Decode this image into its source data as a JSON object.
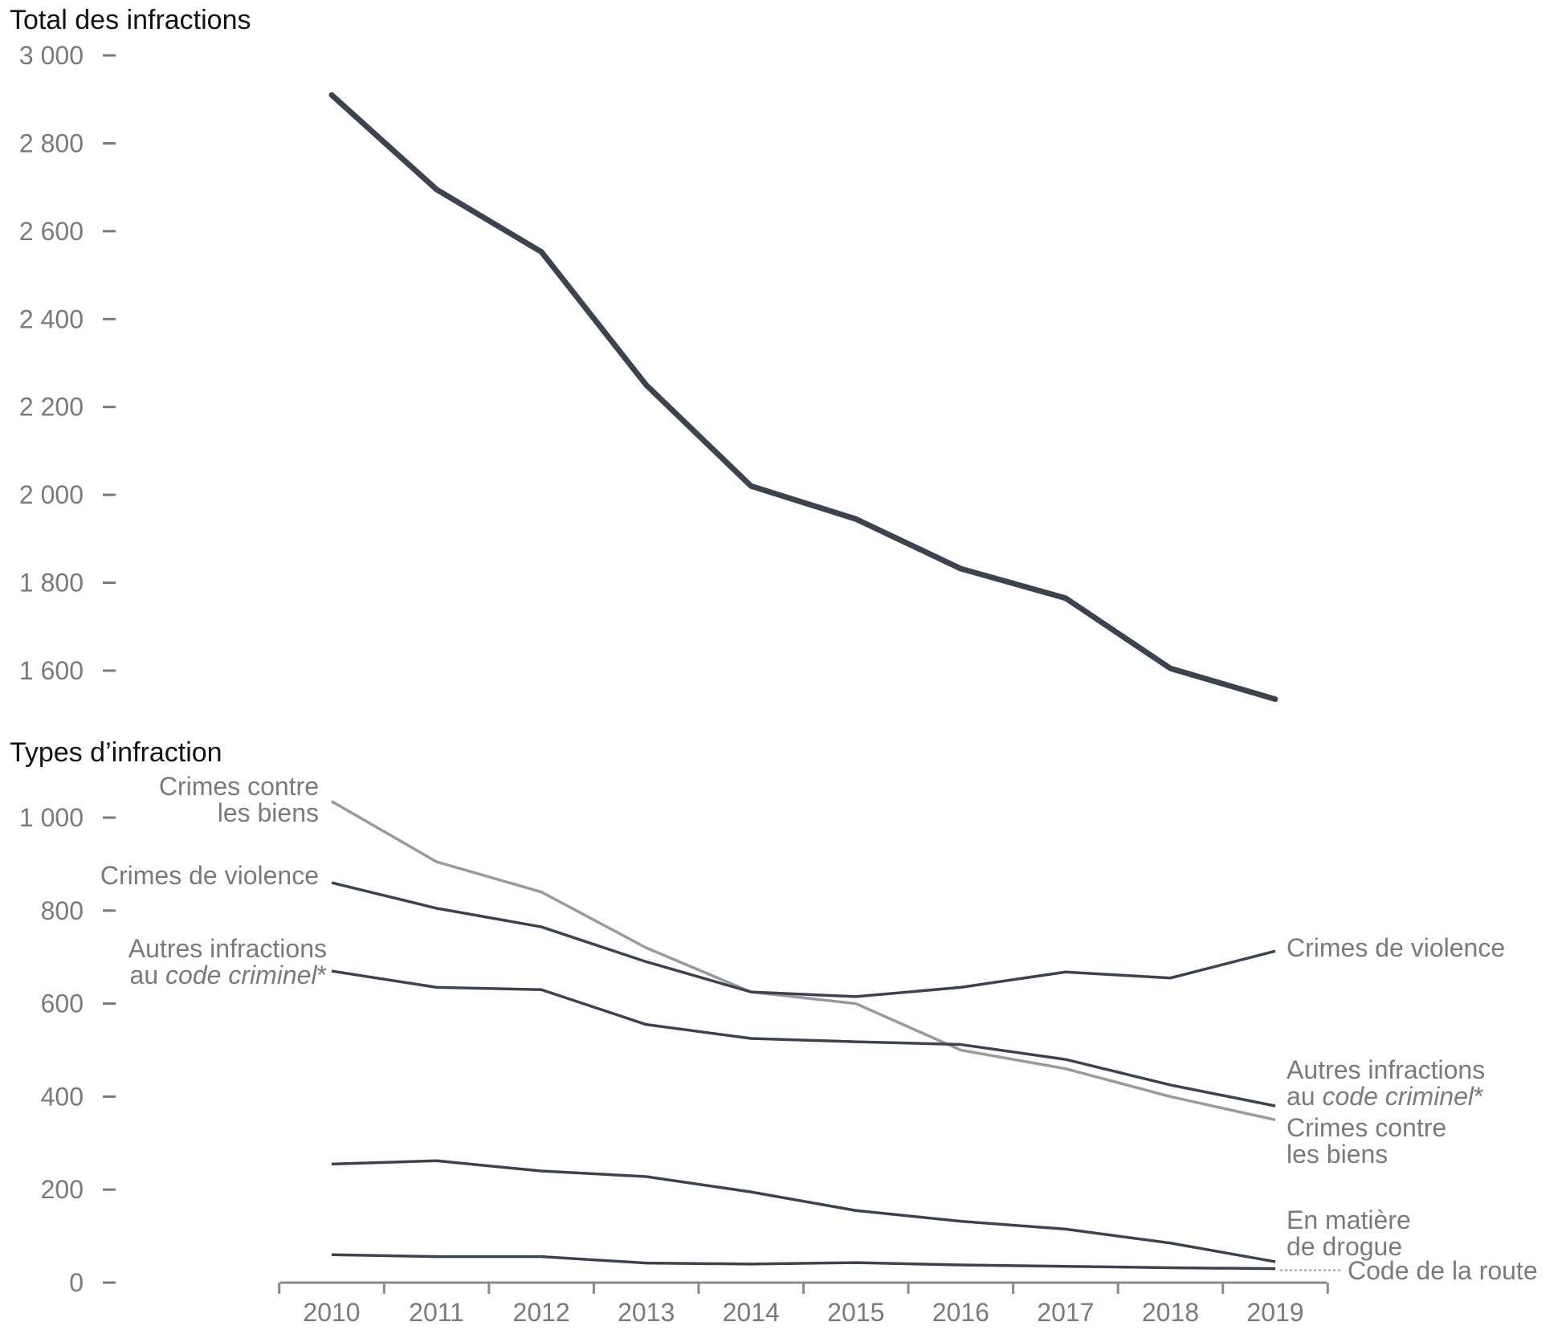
{
  "chart_data": [
    {
      "type": "line",
      "title": "Total des infractions",
      "x": [
        "2010",
        "2011",
        "2012",
        "2013",
        "2014",
        "2015",
        "2016",
        "2017",
        "2018",
        "2019"
      ],
      "ylim": [
        1600,
        3000
      ],
      "yticks": [
        {
          "value": 3000,
          "label": "3 000"
        },
        {
          "value": 2800,
          "label": "2 800"
        },
        {
          "value": 2600,
          "label": "2 600"
        },
        {
          "value": 2400,
          "label": "2 400"
        },
        {
          "value": 2200,
          "label": "2 200"
        },
        {
          "value": 2000,
          "label": "2 000"
        },
        {
          "value": 1800,
          "label": "1 800"
        },
        {
          "value": 1600,
          "label": "1 600"
        }
      ],
      "series": [
        {
          "values": [
            2910,
            2695,
            2553,
            2250,
            2020,
            1945,
            1832,
            1765,
            1605,
            1535
          ],
          "color": "#3b4350"
        }
      ]
    },
    {
      "type": "line",
      "title": "Types d’infraction",
      "x": [
        "2010",
        "2011",
        "2012",
        "2013",
        "2014",
        "2015",
        "2016",
        "2017",
        "2018",
        "2019"
      ],
      "ylim": [
        0,
        1000
      ],
      "yticks": [
        {
          "value": 1000,
          "label": "1 000"
        },
        {
          "value": 800,
          "label": "800"
        },
        {
          "value": 600,
          "label": "600"
        },
        {
          "value": 400,
          "label": "400"
        },
        {
          "value": 200,
          "label": "200"
        },
        {
          "value": 0,
          "label": "0"
        }
      ],
      "series": [
        {
          "name": "Crimes contre les biens",
          "values": [
            1035,
            905,
            840,
            720,
            625,
            600,
            500,
            460,
            400,
            350
          ],
          "color": "#9a9a9a",
          "left_label": [
            "Crimes contre",
            "les biens"
          ],
          "right_label": [
            "Crimes contre",
            "les biens"
          ]
        },
        {
          "name": "Crimes de violence",
          "values": [
            860,
            805,
            765,
            690,
            625,
            615,
            635,
            668,
            655,
            713
          ],
          "color": "#3b4350",
          "left_label": [
            "Crimes de violence"
          ],
          "right_label": [
            "Crimes de violence"
          ]
        },
        {
          "name": "Autres infractions au code criminel*",
          "values": [
            670,
            635,
            630,
            555,
            525,
            518,
            512,
            480,
            425,
            380
          ],
          "color": "#3b4350",
          "left_label": [
            "Autres infractions",
            "au |code criminel|*"
          ],
          "right_label": [
            "Autres infractions",
            "au |code criminel|*"
          ]
        },
        {
          "name": "En matière de drogue",
          "values": [
            255,
            262,
            240,
            228,
            195,
            155,
            132,
            115,
            85,
            45
          ],
          "color": "#3b4350",
          "right_label": [
            "En matière",
            "de drogue"
          ]
        },
        {
          "name": "Code de la route",
          "values": [
            60,
            56,
            56,
            42,
            40,
            43,
            38,
            35,
            32,
            30
          ],
          "color": "#3b4350",
          "right_label": [
            "Code de la route"
          ]
        }
      ]
    }
  ]
}
